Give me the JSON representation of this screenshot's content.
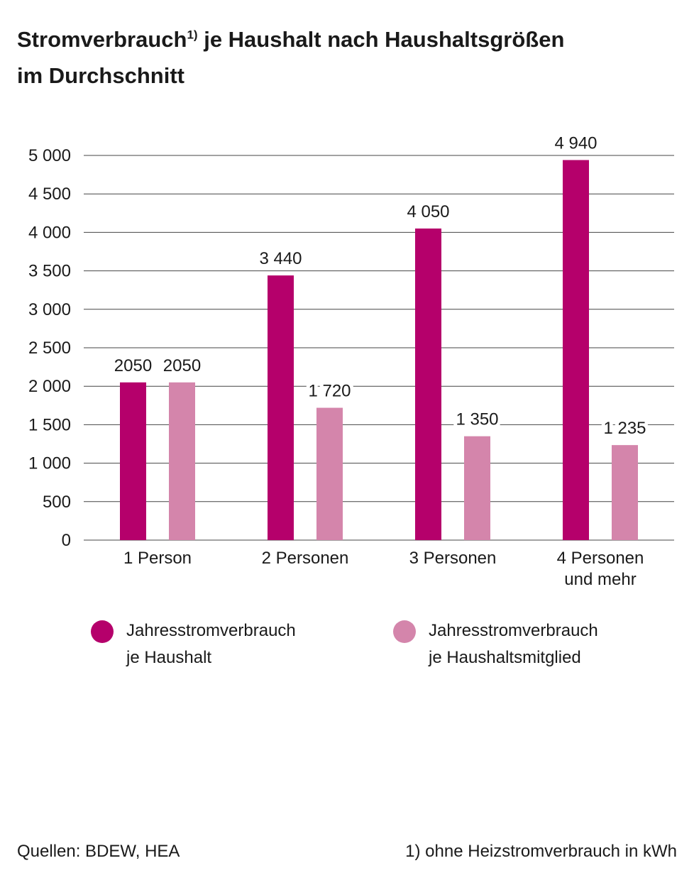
{
  "title": {
    "main": "Stromverbrauch",
    "footnote_marker": "1)",
    "rest": " je Haushalt nach Haushaltsgrößen",
    "line2": "im Durchschnitt"
  },
  "colors": {
    "series1": "#b5006b",
    "series2": "#d485ab",
    "grid": "#444444",
    "text": "#1a1a1a"
  },
  "chart_data": {
    "type": "bar",
    "title": "Stromverbrauch je Haushalt nach Haushaltsgrößen im Durchschnitt",
    "categories": [
      "1 Person",
      "2 Personen",
      "3 Personen",
      "4 Personen\nund mehr"
    ],
    "series": [
      {
        "name": "Jahresstromverbrauch je Haushalt",
        "values": [
          2050,
          3440,
          4050,
          4940
        ],
        "labels": [
          "2050",
          "3 440",
          "4 050",
          "4 940"
        ]
      },
      {
        "name": "Jahresstromverbrauch je Haushaltsmitglied",
        "values": [
          2050,
          1720,
          1350,
          1235
        ],
        "labels": [
          "2050",
          "1 720",
          "1 350",
          "1 235"
        ]
      }
    ],
    "ylim": [
      0,
      5000
    ],
    "yticks": [
      0,
      500,
      1000,
      1500,
      2000,
      2500,
      3000,
      3500,
      4000,
      4500,
      5000
    ],
    "ytick_labels": [
      "0",
      "500",
      "1 000",
      "1 500",
      "2 000",
      "2 500",
      "3 000",
      "3 500",
      "4 000",
      "4 500",
      "5 000"
    ],
    "grid": true,
    "legend_position": "bottom"
  },
  "legend": [
    {
      "line1": "Jahresstromverbrauch",
      "line2": "je Haushalt"
    },
    {
      "line1": "Jahresstromverbrauch",
      "line2": "je Haushaltsmitglied"
    }
  ],
  "source": "Quellen: BDEW, HEA",
  "footnote": "1) ohne Heizstromverbrauch in kWh"
}
